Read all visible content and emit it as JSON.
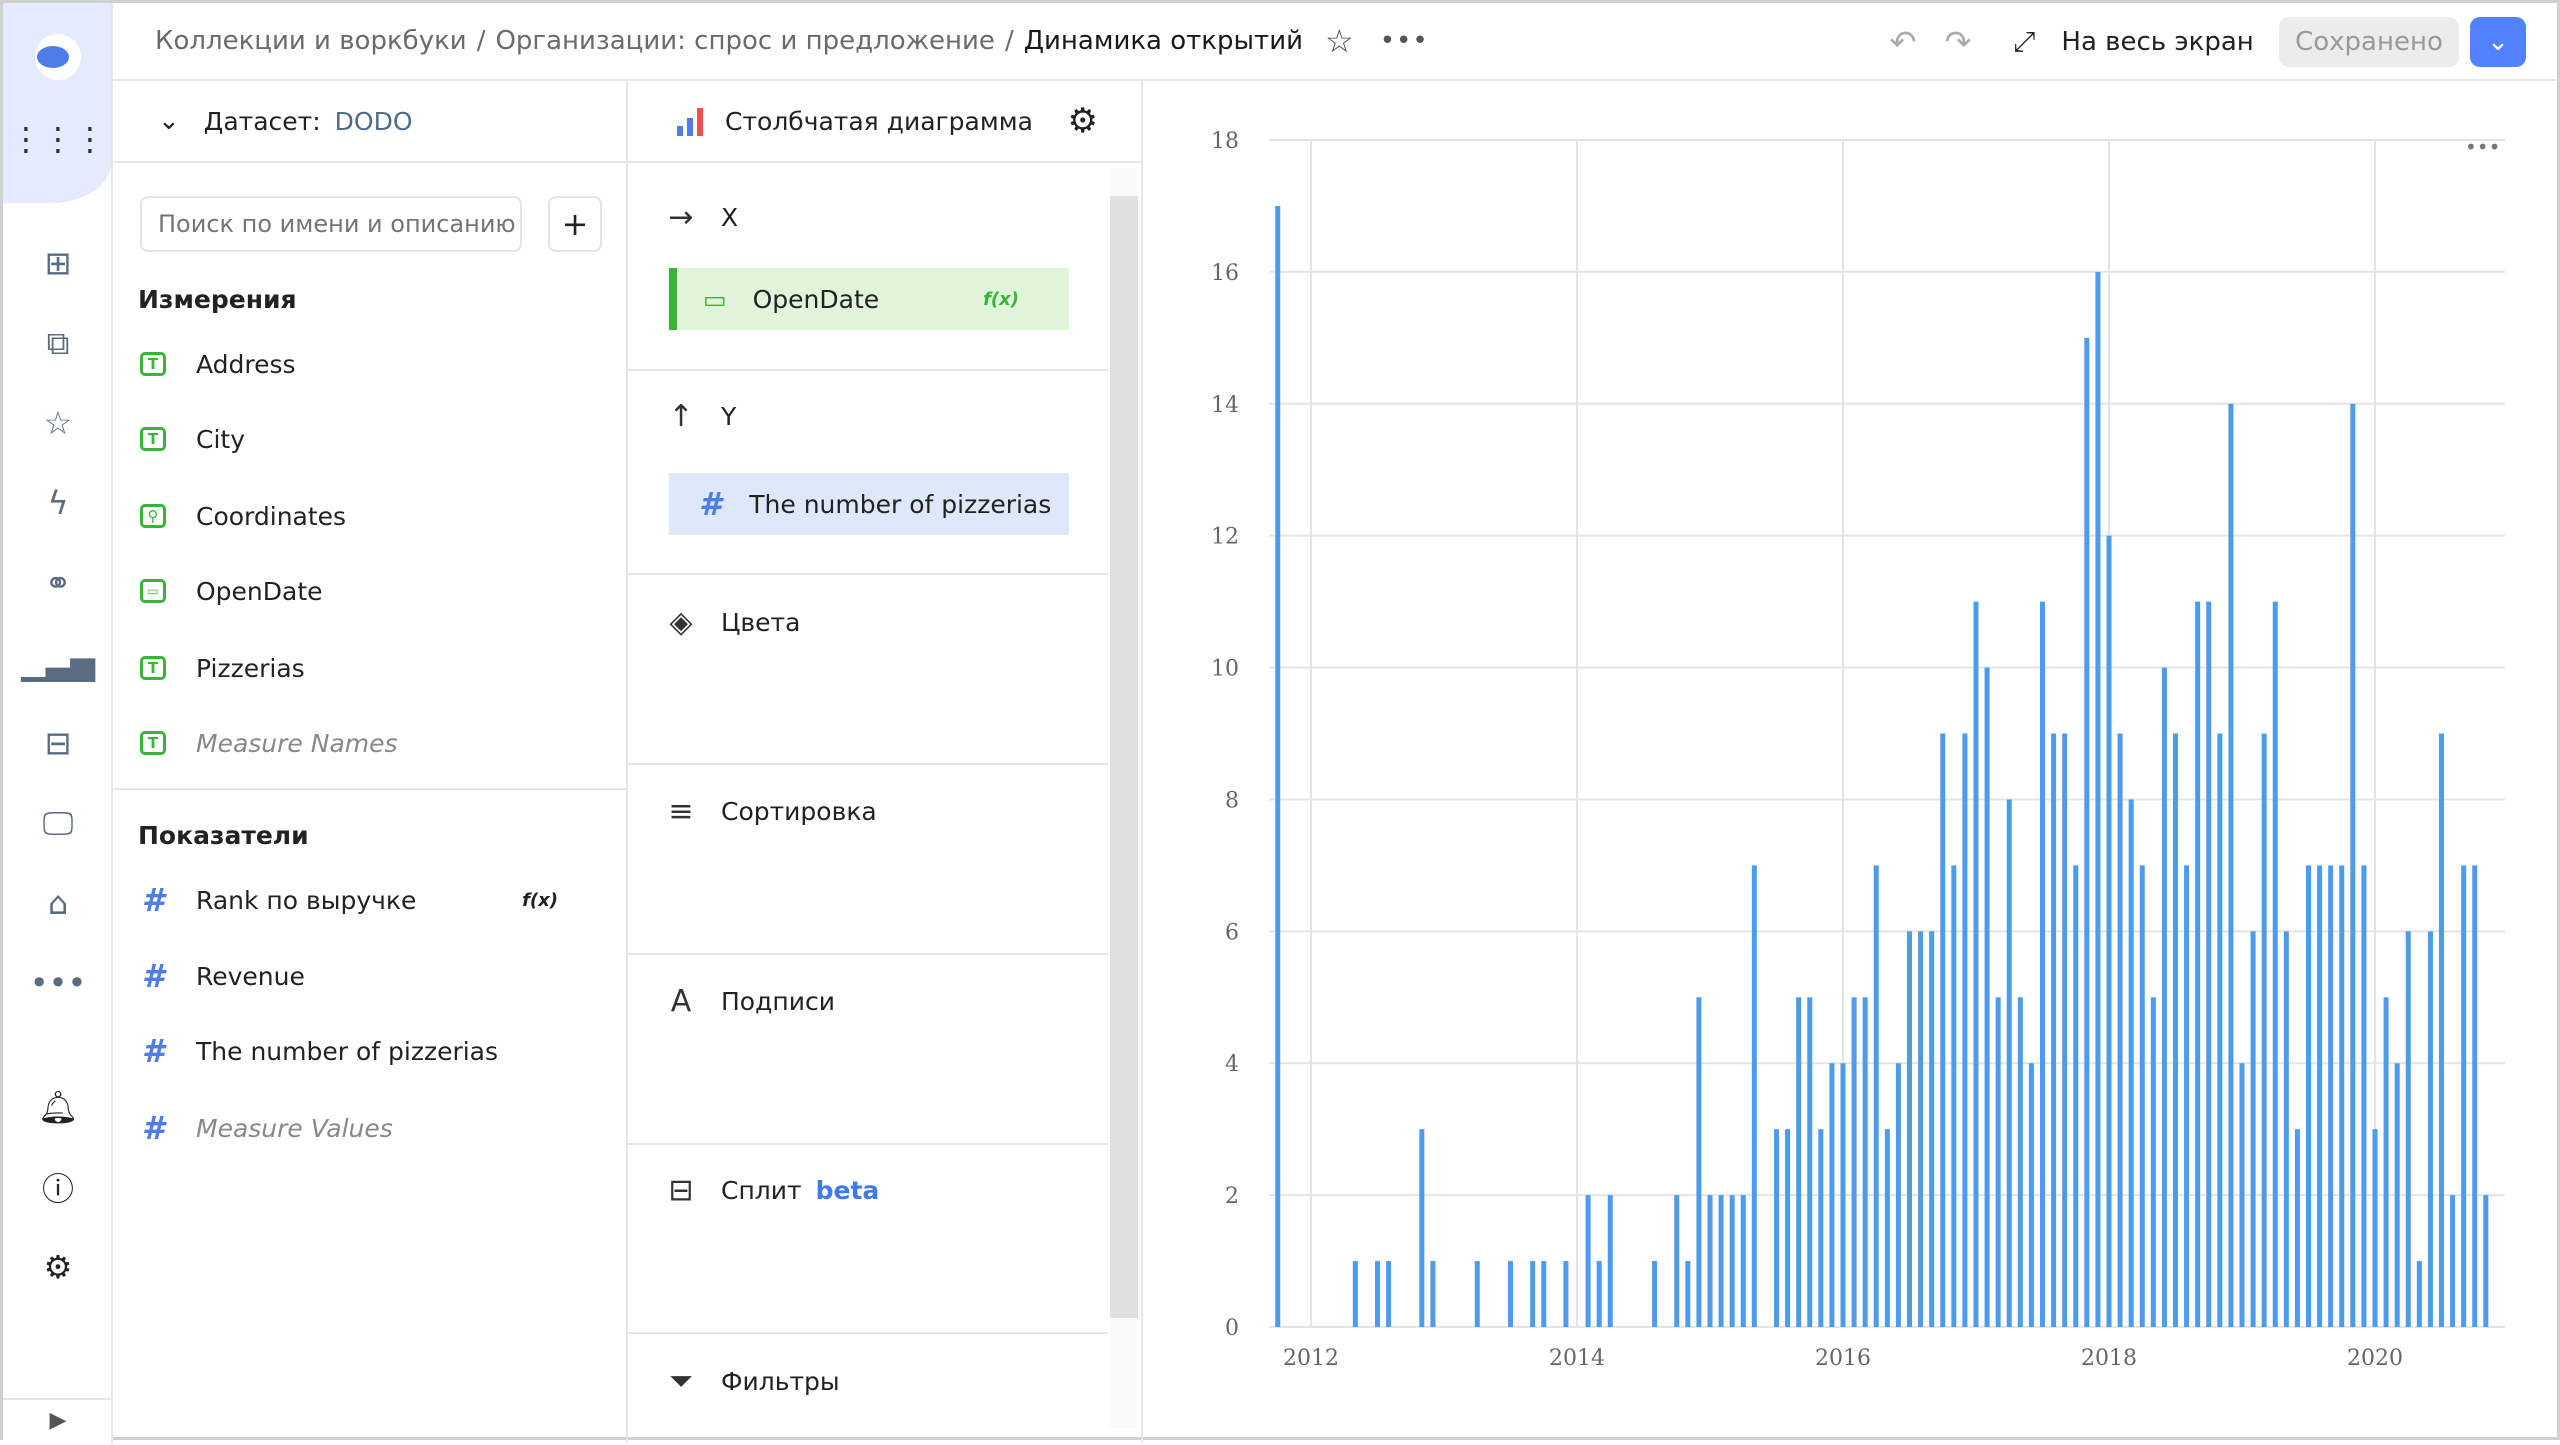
{
  "breadcrumbs": [
    "Коллекции и воркбуки",
    "Организации: спрос и предложение",
    "Динамика открытий"
  ],
  "header": {
    "fullscreen_label": "На весь экран",
    "saved_label": "Сохранено",
    "accent": "#5282ff"
  },
  "dataset": {
    "label": "Датасет:",
    "name": "DODO",
    "search_placeholder": "Поиск по имени и описанию",
    "dimensions_title": "Измерения",
    "dimensions": [
      {
        "label": "Address",
        "type": "text"
      },
      {
        "label": "City",
        "type": "text"
      },
      {
        "label": "Coordinates",
        "type": "geo"
      },
      {
        "label": "OpenDate",
        "type": "date"
      },
      {
        "label": "Pizzerias",
        "type": "text"
      },
      {
        "label": "Measure Names",
        "type": "text"
      }
    ],
    "measures_title": "Показатели",
    "measures": [
      {
        "label": "Rank по выручке",
        "formula": "f(x)"
      },
      {
        "label": "Revenue"
      },
      {
        "label": "The number of pizzerias"
      },
      {
        "label": "Measure Values"
      }
    ]
  },
  "visualization": {
    "type_label": "Столбчатая диаграмма",
    "x_label": "X",
    "x_field": "OpenDate",
    "x_formula": "f(x)",
    "y_label": "Y",
    "y_field": "The number of pizzerias",
    "colors": "Цвета",
    "sort": "Сортировка",
    "labels": "Подписи",
    "split": "Сплит",
    "split_badge": "beta",
    "filters": "Фильтры"
  },
  "chart_data": {
    "type": "bar",
    "xlabel": "",
    "ylabel": "",
    "ylim": [
      0,
      18
    ],
    "yticks": [
      "0",
      "2",
      "4",
      "6",
      "8",
      "10",
      "12",
      "14",
      "16",
      "18"
    ],
    "xticks": [
      "2012",
      "2014",
      "2016",
      "2018",
      "2020"
    ],
    "grid": true,
    "color": "#4d9bed",
    "x": [
      "2011-10",
      "2012-05",
      "2012-07",
      "2012-08",
      "2012-11",
      "2012-12",
      "2013-04",
      "2013-07",
      "2013-09",
      "2013-10",
      "2013-12",
      "2014-02",
      "2014-03",
      "2014-04",
      "2014-08",
      "2014-10",
      "2014-11",
      "2014-12",
      "2015-01",
      "2015-02",
      "2015-03",
      "2015-04",
      "2015-05",
      "2015-07",
      "2015-08",
      "2015-09",
      "2015-10",
      "2015-11",
      "2015-12",
      "2016-01",
      "2016-02",
      "2016-03",
      "2016-04",
      "2016-05",
      "2016-06",
      "2016-07",
      "2016-08",
      "2016-09",
      "2016-10",
      "2016-11",
      "2016-12",
      "2017-01",
      "2017-02",
      "2017-03",
      "2017-04",
      "2017-05",
      "2017-06",
      "2017-07",
      "2017-08",
      "2017-09",
      "2017-10",
      "2017-11",
      "2017-12",
      "2018-01",
      "2018-02",
      "2018-03",
      "2018-04",
      "2018-05",
      "2018-06",
      "2018-07",
      "2018-08",
      "2018-09",
      "2018-10",
      "2018-11",
      "2018-12",
      "2019-01",
      "2019-02",
      "2019-03",
      "2019-04",
      "2019-05",
      "2019-06",
      "2019-07",
      "2019-08",
      "2019-09",
      "2019-10",
      "2019-11",
      "2019-12",
      "2020-01",
      "2020-02",
      "2020-03",
      "2020-04",
      "2020-05",
      "2020-06",
      "2020-07",
      "2020-08",
      "2020-09",
      "2020-10",
      "2020-11"
    ],
    "values": [
      17,
      1,
      1,
      1,
      3,
      1,
      1,
      1,
      1,
      1,
      1,
      2,
      1,
      2,
      1,
      2,
      1,
      5,
      2,
      2,
      2,
      2,
      7,
      3,
      3,
      5,
      5,
      3,
      4,
      4,
      5,
      5,
      7,
      3,
      4,
      6,
      6,
      6,
      9,
      7,
      9,
      11,
      10,
      5,
      8,
      5,
      4,
      11,
      9,
      9,
      7,
      15,
      16,
      12,
      9,
      8,
      7,
      5,
      10,
      9,
      7,
      11,
      11,
      9,
      14,
      4,
      6,
      9,
      11,
      6,
      3,
      7,
      7,
      7,
      7,
      14,
      7,
      3,
      5,
      4,
      6,
      1,
      6,
      9,
      2,
      7,
      7,
      2
    ]
  }
}
